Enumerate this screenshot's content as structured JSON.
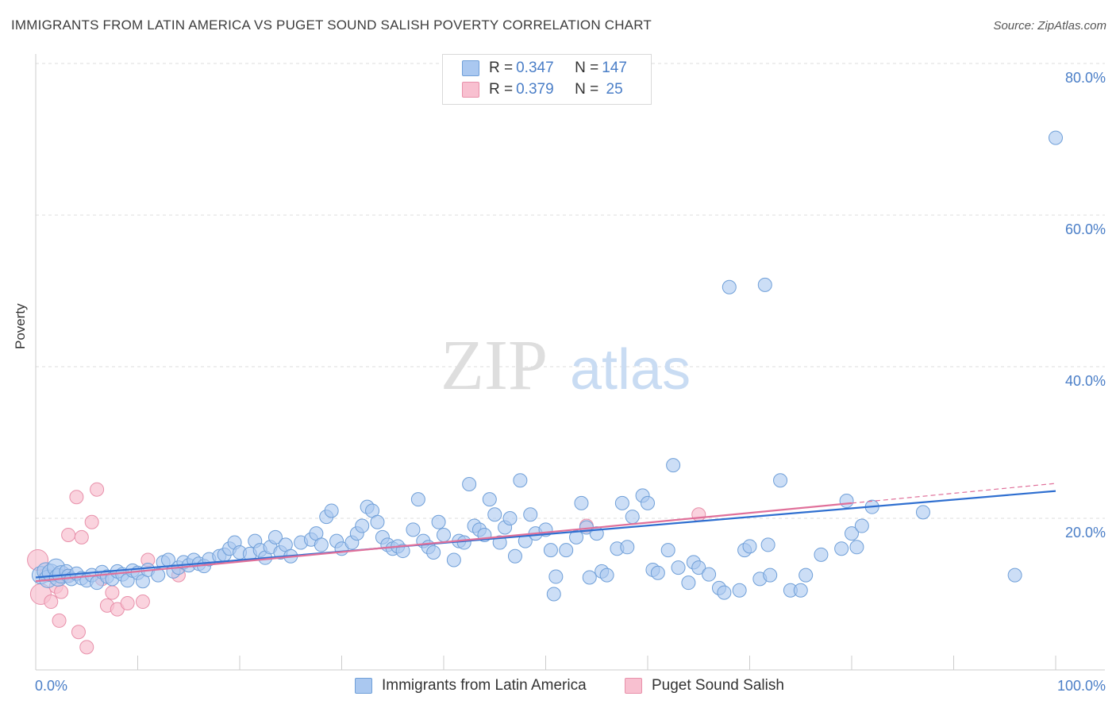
{
  "title": "IMMIGRANTS FROM LATIN AMERICA VS PUGET SOUND SALISH POVERTY CORRELATION CHART",
  "source": "Source: ZipAtlas.com",
  "watermark": {
    "zip": "ZIP",
    "atlas": "atlas"
  },
  "legend": {
    "series1": {
      "r_label": "R = ",
      "r_value": "0.347",
      "n_label": "N = ",
      "n_value": "147"
    },
    "series2": {
      "r_label": "R = ",
      "r_value": "0.379",
      "n_label": "N = ",
      "n_value": " 25"
    }
  },
  "colors": {
    "blue_fill": "#aac8f0",
    "blue_stroke": "#6f9fd8",
    "blue_line": "#2f6fd0",
    "pink_fill": "#f8c0d0",
    "pink_stroke": "#e890aa",
    "pink_line": "#e0709a",
    "tick_label": "#4a7ec7"
  },
  "chart_data": {
    "type": "scatter",
    "title": "IMMIGRANTS FROM LATIN AMERICA VS PUGET SOUND SALISH POVERTY CORRELATION CHART",
    "xlabel": "",
    "ylabel": "Poverty",
    "xlim": [
      0,
      100
    ],
    "ylim": [
      0,
      82
    ],
    "x_tick_labels": [
      "0.0%",
      "100.0%"
    ],
    "y_ticks": [
      20,
      40,
      60,
      80
    ],
    "y_tick_labels": [
      "20.0%",
      "40.0%",
      "60.0%",
      "80.0%"
    ],
    "grid": "horizontal dashed",
    "series": [
      {
        "name": "Immigrants from Latin America",
        "color": "#aac8f0",
        "points": [
          [
            0.5,
            12.5
          ],
          [
            1,
            13
          ],
          [
            1.2,
            12
          ],
          [
            1.5,
            12.8
          ],
          [
            2,
            13.5
          ],
          [
            2.2,
            12.2
          ],
          [
            2.5,
            12.6
          ],
          [
            3,
            13
          ],
          [
            3.2,
            12.4
          ],
          [
            3.5,
            12
          ],
          [
            4,
            12.7
          ],
          [
            4.5,
            12.1
          ],
          [
            5,
            11.8
          ],
          [
            5.5,
            12.5
          ],
          [
            6,
            11.5
          ],
          [
            6.5,
            12.9
          ],
          [
            7,
            12.3
          ],
          [
            7.5,
            12
          ],
          [
            8,
            13
          ],
          [
            8.5,
            12.6
          ],
          [
            9,
            11.8
          ],
          [
            9.5,
            13.1
          ],
          [
            10,
            12.8
          ],
          [
            10.5,
            11.7
          ],
          [
            11,
            13.2
          ],
          [
            12,
            12.5
          ],
          [
            12.5,
            14.2
          ],
          [
            13,
            14.5
          ],
          [
            13.5,
            13
          ],
          [
            14,
            13.5
          ],
          [
            14.5,
            14.2
          ],
          [
            15,
            13.8
          ],
          [
            15.5,
            14.5
          ],
          [
            16,
            14
          ],
          [
            16.5,
            13.7
          ],
          [
            17,
            14.6
          ],
          [
            18,
            15
          ],
          [
            18.5,
            15.2
          ],
          [
            19,
            16
          ],
          [
            19.5,
            16.8
          ],
          [
            20,
            15.5
          ],
          [
            21,
            15.3
          ],
          [
            21.5,
            17
          ],
          [
            22,
            15.8
          ],
          [
            22.5,
            14.8
          ],
          [
            23,
            16.2
          ],
          [
            23.5,
            17.5
          ],
          [
            24,
            15.5
          ],
          [
            24.5,
            16.5
          ],
          [
            25,
            15
          ],
          [
            26,
            16.8
          ],
          [
            27,
            17.2
          ],
          [
            27.5,
            18
          ],
          [
            28,
            16.5
          ],
          [
            28.5,
            20.2
          ],
          [
            29,
            21
          ],
          [
            29.5,
            17
          ],
          [
            30,
            16
          ],
          [
            31,
            16.8
          ],
          [
            31.5,
            18
          ],
          [
            32,
            19
          ],
          [
            32.5,
            21.5
          ],
          [
            33,
            21
          ],
          [
            33.5,
            19.5
          ],
          [
            34,
            17.5
          ],
          [
            34.5,
            16.5
          ],
          [
            35,
            16
          ],
          [
            35.5,
            16.3
          ],
          [
            36,
            15.7
          ],
          [
            37,
            18.5
          ],
          [
            37.5,
            22.5
          ],
          [
            38,
            17
          ],
          [
            38.5,
            16.2
          ],
          [
            39,
            15.5
          ],
          [
            39.5,
            19.5
          ],
          [
            40,
            17.8
          ],
          [
            41,
            14.5
          ],
          [
            41.5,
            17
          ],
          [
            42,
            16.8
          ],
          [
            42.5,
            24.5
          ],
          [
            43,
            19
          ],
          [
            43.5,
            18.5
          ],
          [
            44,
            17.8
          ],
          [
            44.5,
            22.5
          ],
          [
            45,
            20.5
          ],
          [
            45.5,
            16.8
          ],
          [
            46,
            18.8
          ],
          [
            46.5,
            20
          ],
          [
            47,
            15
          ],
          [
            47.5,
            25
          ],
          [
            48,
            17
          ],
          [
            48.5,
            20.5
          ],
          [
            49,
            18
          ],
          [
            50,
            18.5
          ],
          [
            50.5,
            15.8
          ],
          [
            50.8,
            10
          ],
          [
            51,
            12.3
          ],
          [
            52,
            15.8
          ],
          [
            53,
            17.5
          ],
          [
            53.5,
            22
          ],
          [
            54,
            18.8
          ],
          [
            54.3,
            12.2
          ],
          [
            55,
            18
          ],
          [
            55.5,
            13
          ],
          [
            56,
            12.5
          ],
          [
            57,
            16
          ],
          [
            57.5,
            22
          ],
          [
            58,
            16.2
          ],
          [
            58.5,
            20.2
          ],
          [
            59.5,
            23
          ],
          [
            60,
            22
          ],
          [
            60.5,
            13.2
          ],
          [
            61,
            12.8
          ],
          [
            62,
            15.8
          ],
          [
            62.5,
            27
          ],
          [
            63,
            13.5
          ],
          [
            64,
            11.5
          ],
          [
            64.5,
            14.2
          ],
          [
            65,
            13.5
          ],
          [
            66,
            12.6
          ],
          [
            67,
            10.8
          ],
          [
            67.5,
            10.2
          ],
          [
            68,
            50.5
          ],
          [
            69,
            10.5
          ],
          [
            69.5,
            15.8
          ],
          [
            70,
            16.3
          ],
          [
            71,
            12
          ],
          [
            71.5,
            50.8
          ],
          [
            71.8,
            16.5
          ],
          [
            72,
            12.5
          ],
          [
            73,
            25
          ],
          [
            74,
            10.5
          ],
          [
            75,
            10.5
          ],
          [
            75.5,
            12.5
          ],
          [
            77,
            15.2
          ],
          [
            79,
            16
          ],
          [
            79.5,
            22.3
          ],
          [
            80,
            18
          ],
          [
            80.5,
            16.2
          ],
          [
            81,
            19
          ],
          [
            82,
            21.5
          ],
          [
            87,
            20.8
          ],
          [
            96,
            12.5
          ],
          [
            100,
            70.2
          ]
        ],
        "trend": {
          "x": [
            0,
            100
          ],
          "y": [
            12.2,
            23.6
          ]
        }
      },
      {
        "name": "Puget Sound Salish",
        "color": "#f8c0d0",
        "points": [
          [
            0.2,
            14.5
          ],
          [
            0.5,
            10
          ],
          [
            1,
            12.5
          ],
          [
            1.5,
            9
          ],
          [
            2,
            11
          ],
          [
            2.3,
            6.5
          ],
          [
            2.5,
            10.3
          ],
          [
            3,
            12.4
          ],
          [
            3.2,
            17.8
          ],
          [
            4,
            22.8
          ],
          [
            4.2,
            5
          ],
          [
            4.5,
            17.5
          ],
          [
            5,
            3
          ],
          [
            5.5,
            19.5
          ],
          [
            6,
            23.8
          ],
          [
            6.5,
            12
          ],
          [
            7,
            8.5
          ],
          [
            7.5,
            10.2
          ],
          [
            8,
            8
          ],
          [
            9,
            8.8
          ],
          [
            10.5,
            9
          ],
          [
            11,
            14.5
          ],
          [
            14,
            12.5
          ],
          [
            54,
            19
          ],
          [
            65,
            20.5
          ]
        ],
        "trend": {
          "x": [
            0,
            80
          ],
          "y": [
            11.7,
            22.0
          ]
        },
        "trend_dashed": {
          "x": [
            80,
            100
          ],
          "y": [
            22.0,
            24.6
          ]
        }
      }
    ]
  },
  "bottom_legend": {
    "series1": "Immigrants from Latin America",
    "series2": "Puget Sound Salish"
  }
}
